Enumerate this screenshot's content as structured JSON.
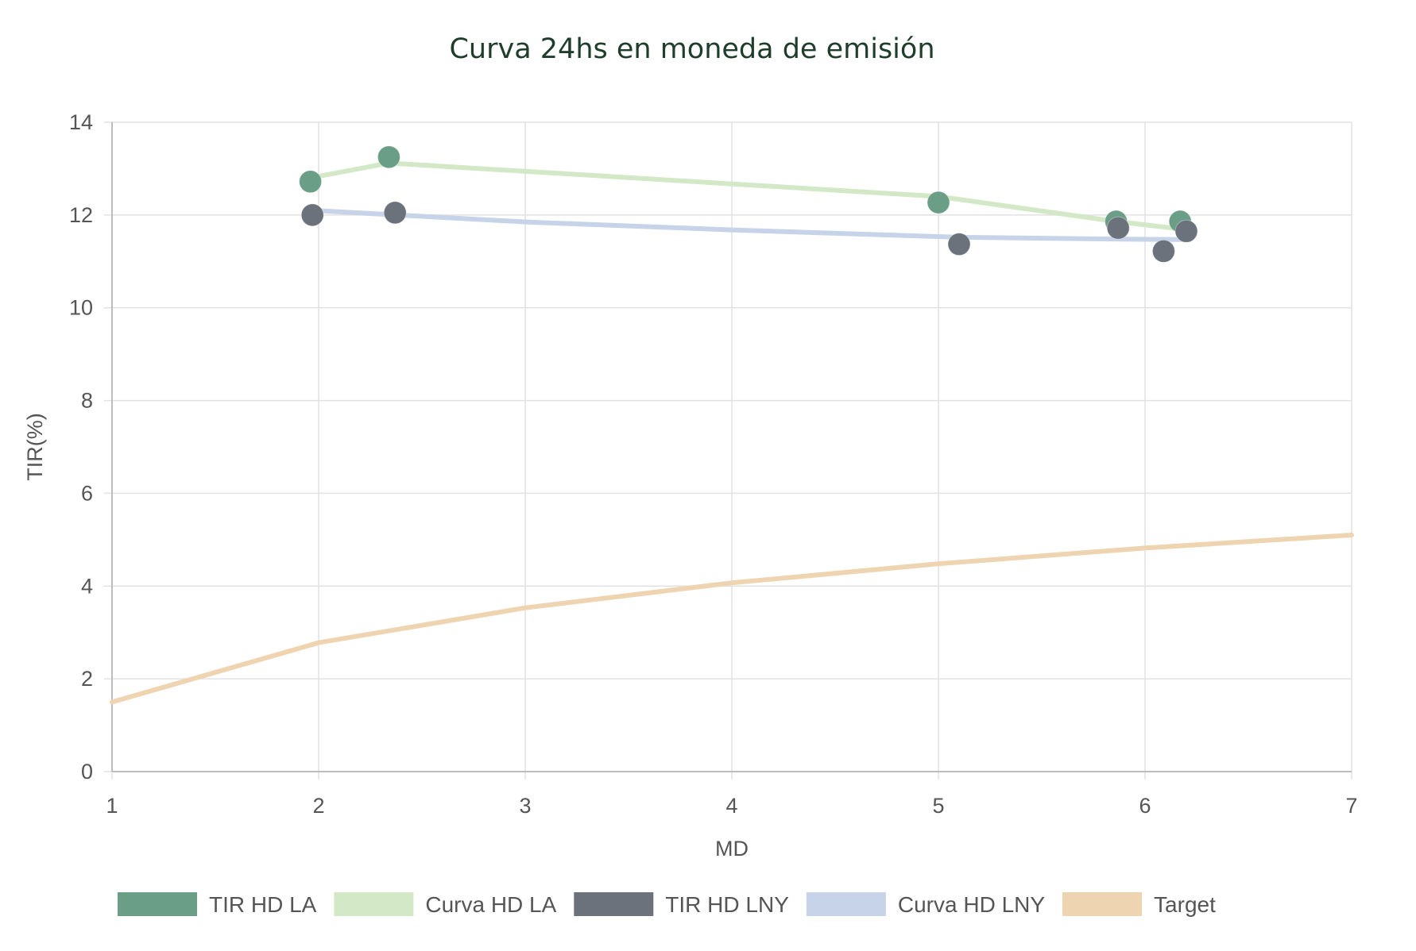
{
  "chart_data": {
    "type": "line",
    "title": "Curva 24hs en moneda de emisión",
    "xlabel": "MD",
    "ylabel": "TIR(%)",
    "xlim": [
      1,
      7
    ],
    "ylim": [
      0,
      14
    ],
    "x_ticks": [
      "1",
      "2",
      "3",
      "4",
      "5",
      "6",
      "7"
    ],
    "y_ticks": [
      "0",
      "2",
      "4",
      "6",
      "8",
      "10",
      "12",
      "14"
    ],
    "grid": true,
    "legend_position": "bottom",
    "series": [
      {
        "name": "TIR HD LA",
        "kind": "scatter",
        "color": "#6b9e87",
        "points": [
          {
            "x": 1.96,
            "y": 12.72
          },
          {
            "x": 2.34,
            "y": 13.25
          },
          {
            "x": 5.0,
            "y": 12.27
          },
          {
            "x": 5.86,
            "y": 11.86
          },
          {
            "x": 6.17,
            "y": 11.86
          }
        ]
      },
      {
        "name": "Curva HD LA",
        "kind": "line",
        "color": "#d3e8c6",
        "points": [
          {
            "x": 1.96,
            "y": 12.8
          },
          {
            "x": 2.34,
            "y": 13.12
          },
          {
            "x": 5.0,
            "y": 12.4
          },
          {
            "x": 5.86,
            "y": 11.86
          },
          {
            "x": 6.17,
            "y": 11.7
          }
        ]
      },
      {
        "name": "TIR HD LNY",
        "kind": "scatter",
        "color": "#6b727c",
        "points": [
          {
            "x": 1.97,
            "y": 12.0
          },
          {
            "x": 2.37,
            "y": 12.05
          },
          {
            "x": 5.1,
            "y": 11.37
          },
          {
            "x": 5.87,
            "y": 11.72
          },
          {
            "x": 6.09,
            "y": 11.22
          },
          {
            "x": 6.2,
            "y": 11.65
          }
        ]
      },
      {
        "name": "Curva HD LNY",
        "kind": "line",
        "color": "#c6d3e9",
        "points": [
          {
            "x": 1.97,
            "y": 12.1
          },
          {
            "x": 3.0,
            "y": 11.85
          },
          {
            "x": 4.0,
            "y": 11.68
          },
          {
            "x": 5.1,
            "y": 11.52
          },
          {
            "x": 5.87,
            "y": 11.48
          },
          {
            "x": 6.2,
            "y": 11.47
          }
        ]
      },
      {
        "name": "Target",
        "kind": "line",
        "color": "#efd4b1",
        "points": [
          {
            "x": 1.0,
            "y": 1.5
          },
          {
            "x": 2.0,
            "y": 2.78
          },
          {
            "x": 3.0,
            "y": 3.53
          },
          {
            "x": 4.0,
            "y": 4.07
          },
          {
            "x": 5.0,
            "y": 4.48
          },
          {
            "x": 6.0,
            "y": 4.82
          },
          {
            "x": 7.0,
            "y": 5.1
          }
        ]
      }
    ]
  }
}
